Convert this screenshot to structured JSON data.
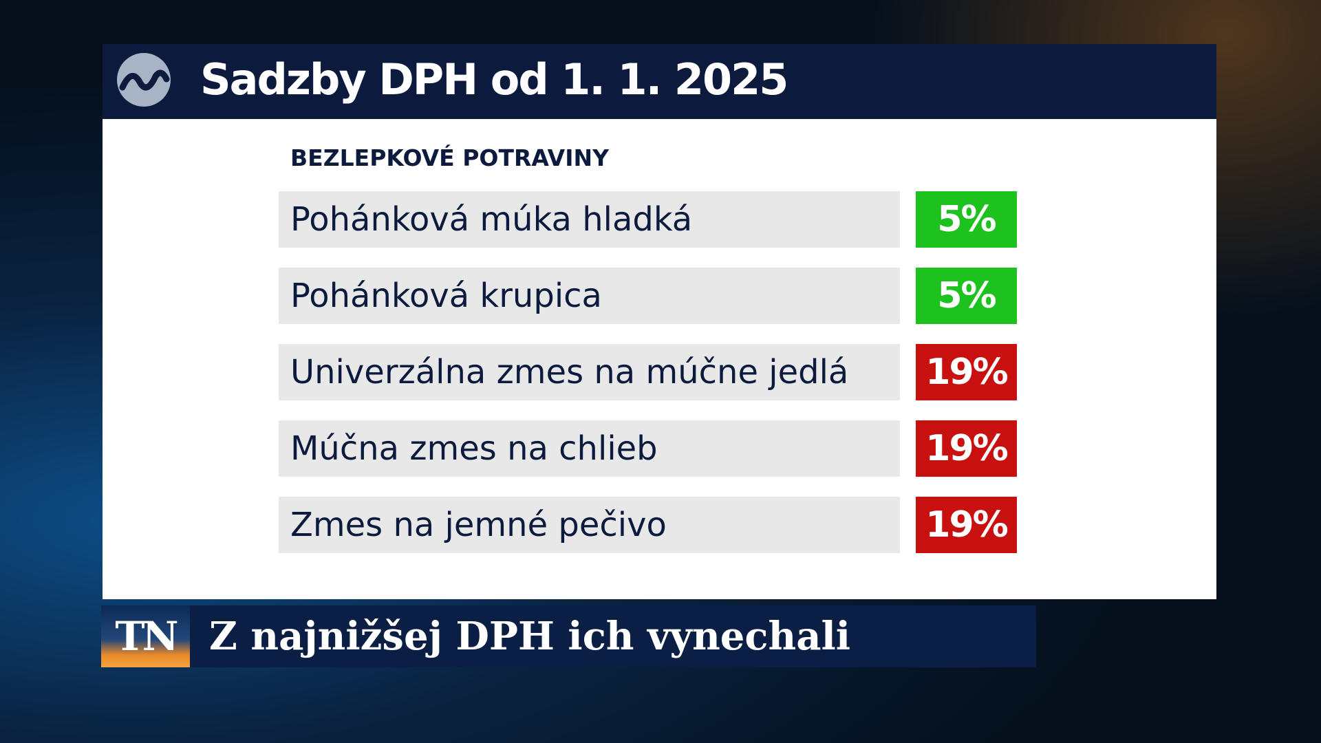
{
  "header": {
    "title": "Sadzby DPH od 1. 1. 2025"
  },
  "table": {
    "heading": "BEZLEPKOVÉ POTRAVINY",
    "rows": [
      {
        "label": "Pohánková múka hladká",
        "rate": "5%",
        "color": "#1ec21e"
      },
      {
        "label": "Pohánková krupica",
        "rate": "5%",
        "color": "#1ec21e"
      },
      {
        "label": "Univerzálna zmes na múčne jedlá",
        "rate": "19%",
        "color": "#c8100f"
      },
      {
        "label": "Múčna zmes na chlieb",
        "rate": "19%",
        "color": "#c8100f"
      },
      {
        "label": "Zmes na jemné pečivo",
        "rate": "19%",
        "color": "#c8100f"
      }
    ]
  },
  "ticker": {
    "logo": "TN",
    "text": "Z najnižšej DPH ich vynechali"
  }
}
